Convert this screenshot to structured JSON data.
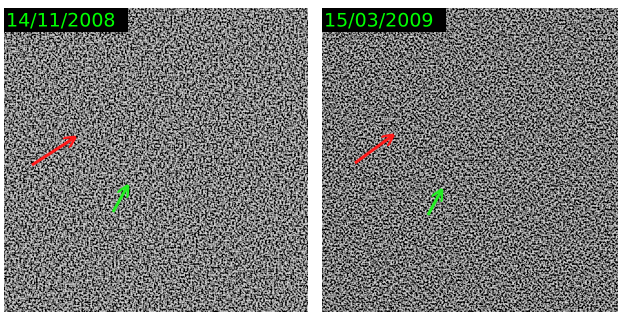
{
  "panels": [
    {
      "label": "14/11/2008"
    },
    {
      "label": "15/03/2009"
    }
  ]
}
